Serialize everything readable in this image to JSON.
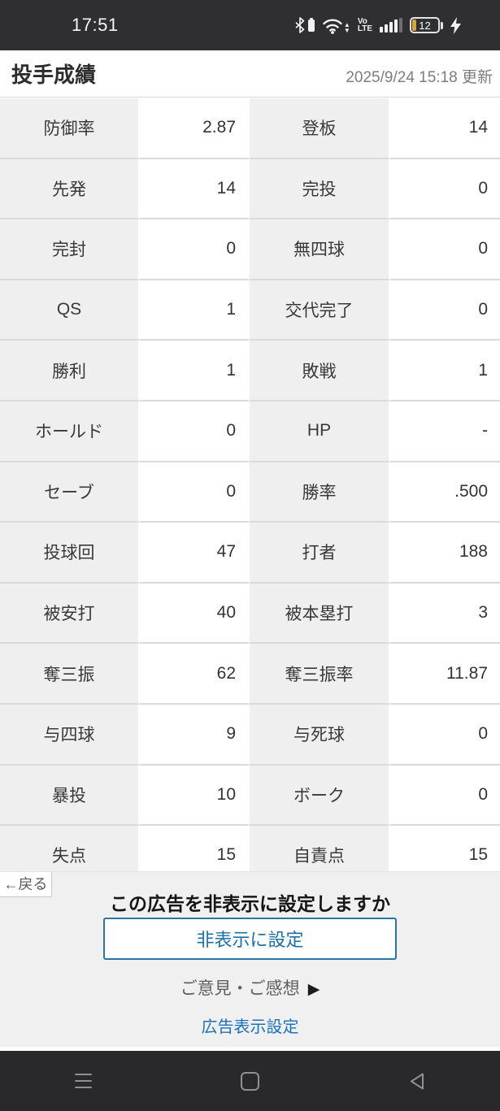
{
  "status_bar": {
    "time": "17:51",
    "battery_percent": "12",
    "volte_top": "Vo",
    "volte_bottom": "LTE",
    "wifi_up_arrow": "▲",
    "wifi_down_arrow": "▼",
    "icons": [
      "bluetooth-icon",
      "bt-device-battery-icon",
      "wifi-icon",
      "wifi-data-arrows-icon",
      "volte-icon",
      "signal-strength-icon",
      "battery-icon",
      "charging-icon"
    ]
  },
  "header": {
    "title": "投手成績",
    "updated": "2025/9/24 15:18 更新"
  },
  "stats_table": {
    "rows": [
      {
        "label1": "防御率",
        "value1": "2.87",
        "label2": "登板",
        "value2": "14"
      },
      {
        "label1": "先発",
        "value1": "14",
        "label2": "完投",
        "value2": "0"
      },
      {
        "label1": "完封",
        "value1": "0",
        "label2": "無四球",
        "value2": "0"
      },
      {
        "label1": "QS",
        "value1": "1",
        "label2": "交代完了",
        "value2": "0"
      },
      {
        "label1": "勝利",
        "value1": "1",
        "label2": "敗戦",
        "value2": "1"
      },
      {
        "label1": "ホールド",
        "value1": "0",
        "label2": "HP",
        "value2": "-"
      },
      {
        "label1": "セーブ",
        "value1": "0",
        "label2": "勝率",
        "value2": ".500"
      },
      {
        "label1": "投球回",
        "value1": "47",
        "label2": "打者",
        "value2": "188"
      },
      {
        "label1": "被安打",
        "value1": "40",
        "label2": "被本塁打",
        "value2": "3"
      },
      {
        "label1": "奪三振",
        "value1": "62",
        "label2": "奪三振率",
        "value2": "11.87"
      },
      {
        "label1": "与四球",
        "value1": "9",
        "label2": "与死球",
        "value2": "0"
      },
      {
        "label1": "暴投",
        "value1": "10",
        "label2": "ボーク",
        "value2": "0"
      },
      {
        "label1": "失点",
        "value1": "15",
        "label2": "自責点",
        "value2": "15"
      }
    ]
  },
  "ad_panel": {
    "back_button": "←戻る",
    "question": "この広告を非表示に設定しますか",
    "hide_button": "非表示に設定",
    "feedback_link": "ご意見・ご感想",
    "feedback_arrow": "▶",
    "settings_link": "広告表示設定"
  },
  "colors": {
    "status_bar_bg": "#2f2f31",
    "nav_bar_bg": "#29292b",
    "label_cell_bg": "#efeff0",
    "row_border": "#d9dadb",
    "ad_panel_bg": "#f0f0f1",
    "button_blue": "#2b73a5",
    "link_blue": "#1c72ba",
    "battery_orange": "#d8a43c"
  }
}
